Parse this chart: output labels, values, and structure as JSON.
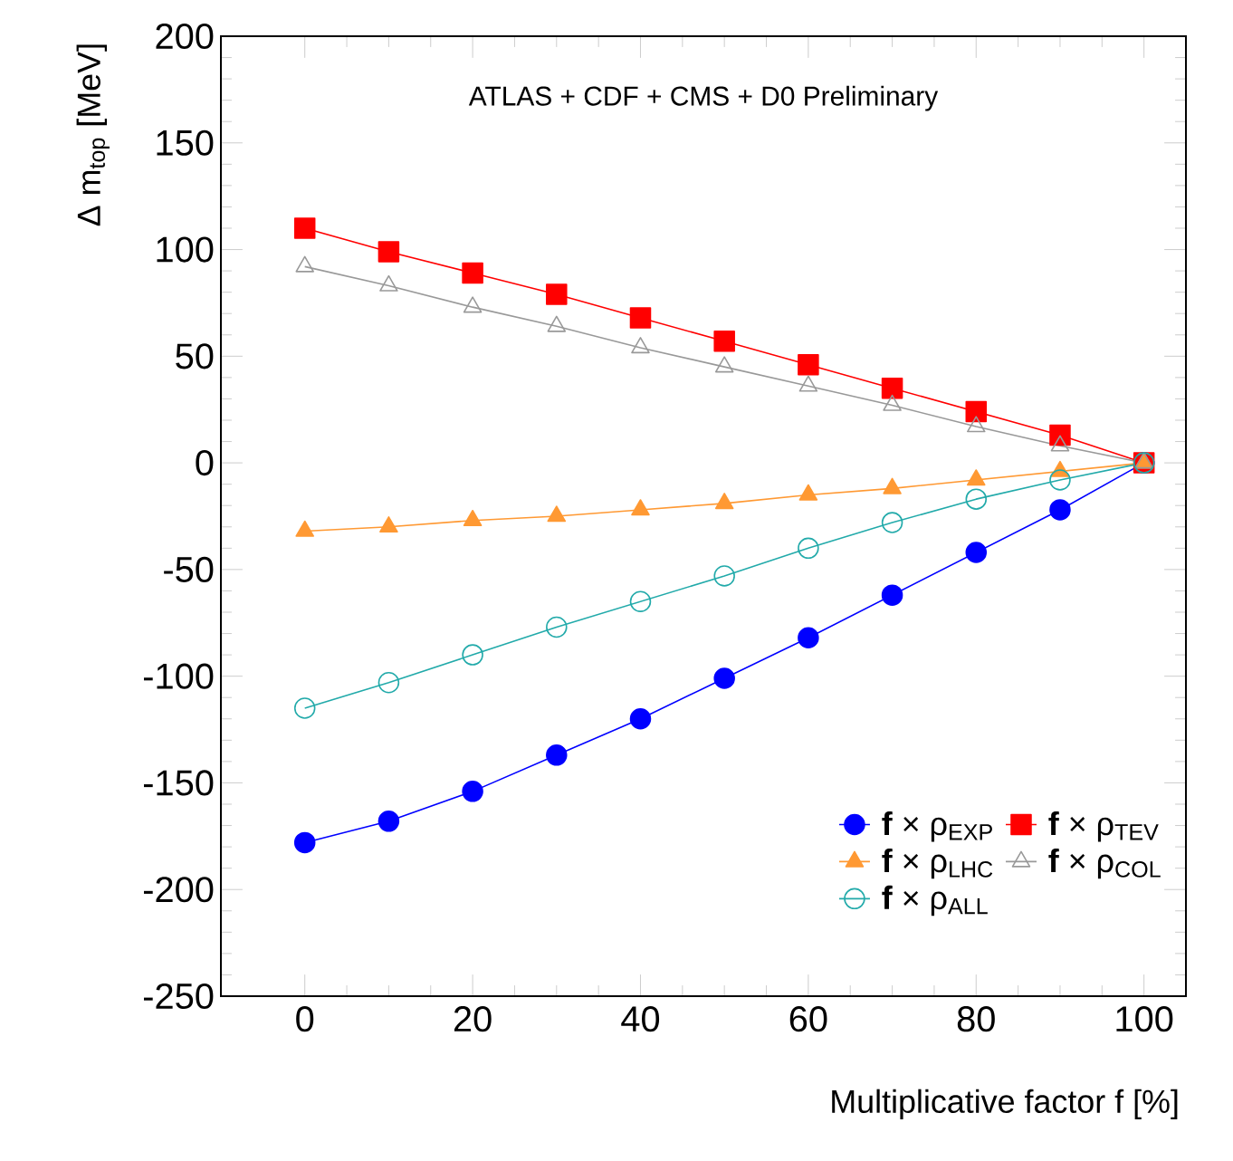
{
  "chart_data": {
    "type": "line",
    "xlabel": "Multiplicative factor f  [%]",
    "ylabel": "Δ m$_{top}$ [MeV]",
    "annotations": [
      "ATLAS + CDF + CMS + D0 Preliminary"
    ],
    "x": [
      0,
      10,
      20,
      30,
      40,
      50,
      60,
      70,
      80,
      90,
      100
    ],
    "xlim": [
      -10,
      105
    ],
    "xticks": [
      0,
      20,
      40,
      60,
      80,
      100
    ],
    "ylim": [
      -250,
      200
    ],
    "yticks": [
      -250,
      -200,
      -150,
      -100,
      -50,
      0,
      50,
      100,
      150,
      200
    ],
    "grid": false,
    "legend": "bottom right",
    "line_style": "solid",
    "series": [
      {
        "name": "**f** × ρ$_{EXP}$",
        "color": "#0000ff",
        "marker": "circle",
        "values": [
          -178,
          -168,
          -154,
          -137,
          -120,
          -101,
          -82,
          -62,
          -42,
          -22,
          0
        ]
      },
      {
        "name": "**f** × ρ$_{TEV}$",
        "color": "#ff0000",
        "marker": "square",
        "values": [
          110,
          99,
          89,
          79,
          68,
          57,
          46,
          35,
          24,
          13,
          0
        ]
      },
      {
        "name": "**f** × ρ$_{LHC}$",
        "color": "#ff9933",
        "marker": "triangle",
        "values": [
          -32,
          -30,
          -27,
          -25,
          -22,
          -19,
          -15,
          -12,
          -8,
          -4,
          0
        ]
      },
      {
        "name": "**f** × ρ$_{COL}$",
        "color": "#999999",
        "marker": "triangle-open",
        "values": [
          92,
          83,
          73,
          64,
          54,
          45,
          36,
          27,
          17,
          8,
          0
        ]
      },
      {
        "name": "**f** × ρ$_{ALL}$",
        "color": "#22aaaa",
        "marker": "circle-open",
        "values": [
          -115,
          -103,
          -90,
          -77,
          -65,
          -53,
          -40,
          -28,
          -17,
          -8,
          0
        ]
      }
    ]
  }
}
